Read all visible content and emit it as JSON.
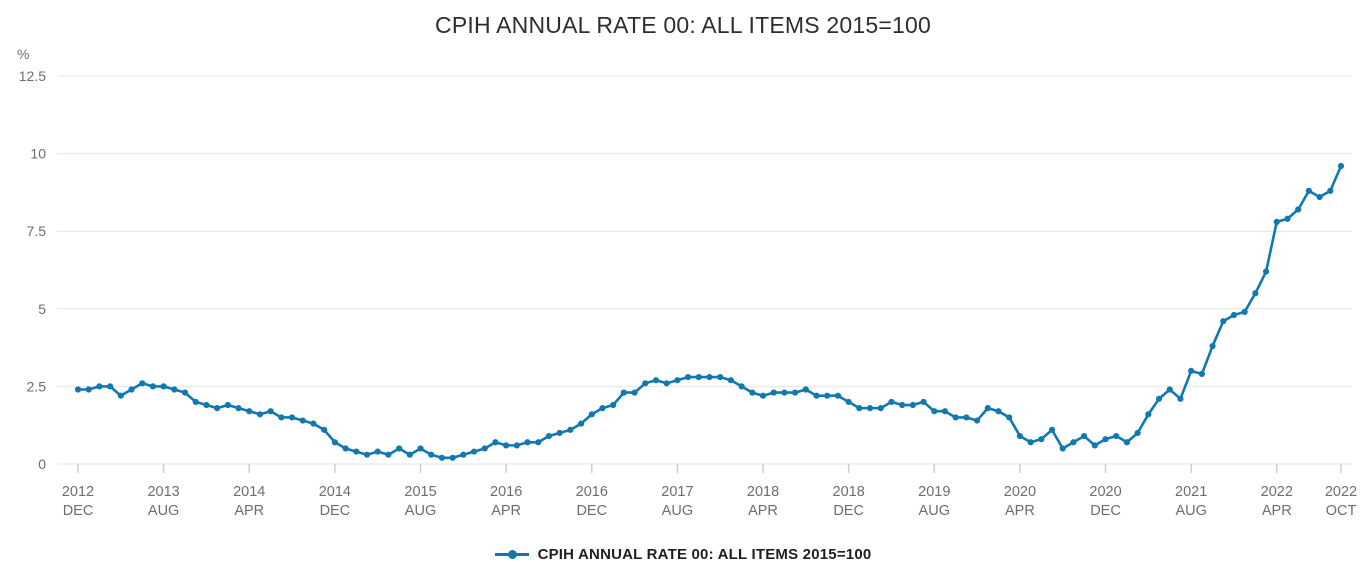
{
  "title": "CPIH ANNUAL RATE 00: ALL ITEMS 2015=100",
  "legend": {
    "label": "CPIH ANNUAL RATE 00: ALL ITEMS 2015=100"
  },
  "y_axis": {
    "unit_label": "%",
    "tick_labels": [
      "12.5",
      "10",
      "7.5",
      "5",
      "2.5",
      "0"
    ],
    "tick_values": [
      12.5,
      10,
      7.5,
      5,
      2.5,
      0
    ]
  },
  "x_axis": {
    "ticks": [
      {
        "year": "2012",
        "month": "DEC",
        "m": 0
      },
      {
        "year": "2013",
        "month": "AUG",
        "m": 8
      },
      {
        "year": "2014",
        "month": "APR",
        "m": 16
      },
      {
        "year": "2014",
        "month": "DEC",
        "m": 24
      },
      {
        "year": "2015",
        "month": "AUG",
        "m": 32
      },
      {
        "year": "2016",
        "month": "APR",
        "m": 40
      },
      {
        "year": "2016",
        "month": "DEC",
        "m": 48
      },
      {
        "year": "2017",
        "month": "AUG",
        "m": 56
      },
      {
        "year": "2018",
        "month": "APR",
        "m": 64
      },
      {
        "year": "2018",
        "month": "DEC",
        "m": 72
      },
      {
        "year": "2019",
        "month": "AUG",
        "m": 80
      },
      {
        "year": "2020",
        "month": "APR",
        "m": 88
      },
      {
        "year": "2020",
        "month": "DEC",
        "m": 96
      },
      {
        "year": "2021",
        "month": "AUG",
        "m": 104
      },
      {
        "year": "2022",
        "month": "APR",
        "m": 112
      },
      {
        "year": "2022",
        "month": "OCT",
        "m": 118
      }
    ]
  },
  "colors": {
    "line": "#1178b0",
    "grid": "#e4e4e4",
    "axis_text": "#6e6e6e",
    "tick_stub": "#c5d0da",
    "title_text": "#2e2e2e"
  },
  "chart_data": {
    "type": "line",
    "title": "CPIH ANNUAL RATE 00: ALL ITEMS 2015=100",
    "xlabel": "",
    "ylabel": "%",
    "ylim": [
      0,
      12.5
    ],
    "y_ticks": [
      0,
      2.5,
      5,
      7.5,
      10,
      12.5
    ],
    "grid": "horizontal-only",
    "legend_position": "bottom-center",
    "frequency": "monthly",
    "x_start": "2012-12",
    "x_end": "2022-10",
    "x_tick_labels": [
      "2012 DEC",
      "2013 AUG",
      "2014 APR",
      "2014 DEC",
      "2015 AUG",
      "2016 APR",
      "2016 DEC",
      "2017 AUG",
      "2018 APR",
      "2018 DEC",
      "2019 AUG",
      "2020 APR",
      "2020 DEC",
      "2021 AUG",
      "2022 APR",
      "2022 OCT"
    ],
    "series": [
      {
        "name": "CPIH ANNUAL RATE 00: ALL ITEMS 2015=100",
        "values": [
          2.4,
          2.4,
          2.5,
          2.5,
          2.2,
          2.4,
          2.6,
          2.5,
          2.5,
          2.4,
          2.3,
          2.0,
          1.9,
          1.8,
          1.9,
          1.8,
          1.7,
          1.6,
          1.7,
          1.5,
          1.5,
          1.4,
          1.3,
          1.1,
          0.7,
          0.5,
          0.4,
          0.3,
          0.4,
          0.3,
          0.5,
          0.3,
          0.5,
          0.3,
          0.2,
          0.2,
          0.3,
          0.4,
          0.5,
          0.7,
          0.6,
          0.6,
          0.7,
          0.7,
          0.9,
          1.0,
          1.1,
          1.3,
          1.6,
          1.8,
          1.9,
          2.3,
          2.3,
          2.6,
          2.7,
          2.6,
          2.7,
          2.8,
          2.8,
          2.8,
          2.8,
          2.7,
          2.5,
          2.3,
          2.2,
          2.3,
          2.3,
          2.3,
          2.4,
          2.2,
          2.2,
          2.2,
          2.0,
          1.8,
          1.8,
          1.8,
          2.0,
          1.9,
          1.9,
          2.0,
          1.7,
          1.7,
          1.5,
          1.5,
          1.4,
          1.8,
          1.7,
          1.5,
          0.9,
          0.7,
          0.8,
          1.1,
          0.5,
          0.7,
          0.9,
          0.6,
          0.8,
          0.9,
          0.7,
          1.0,
          1.6,
          2.1,
          2.4,
          2.1,
          3.0,
          2.9,
          3.8,
          4.6,
          4.8,
          4.9,
          5.5,
          6.2,
          7.8,
          7.9,
          8.2,
          8.8,
          8.6,
          8.8,
          9.6
        ]
      }
    ]
  }
}
